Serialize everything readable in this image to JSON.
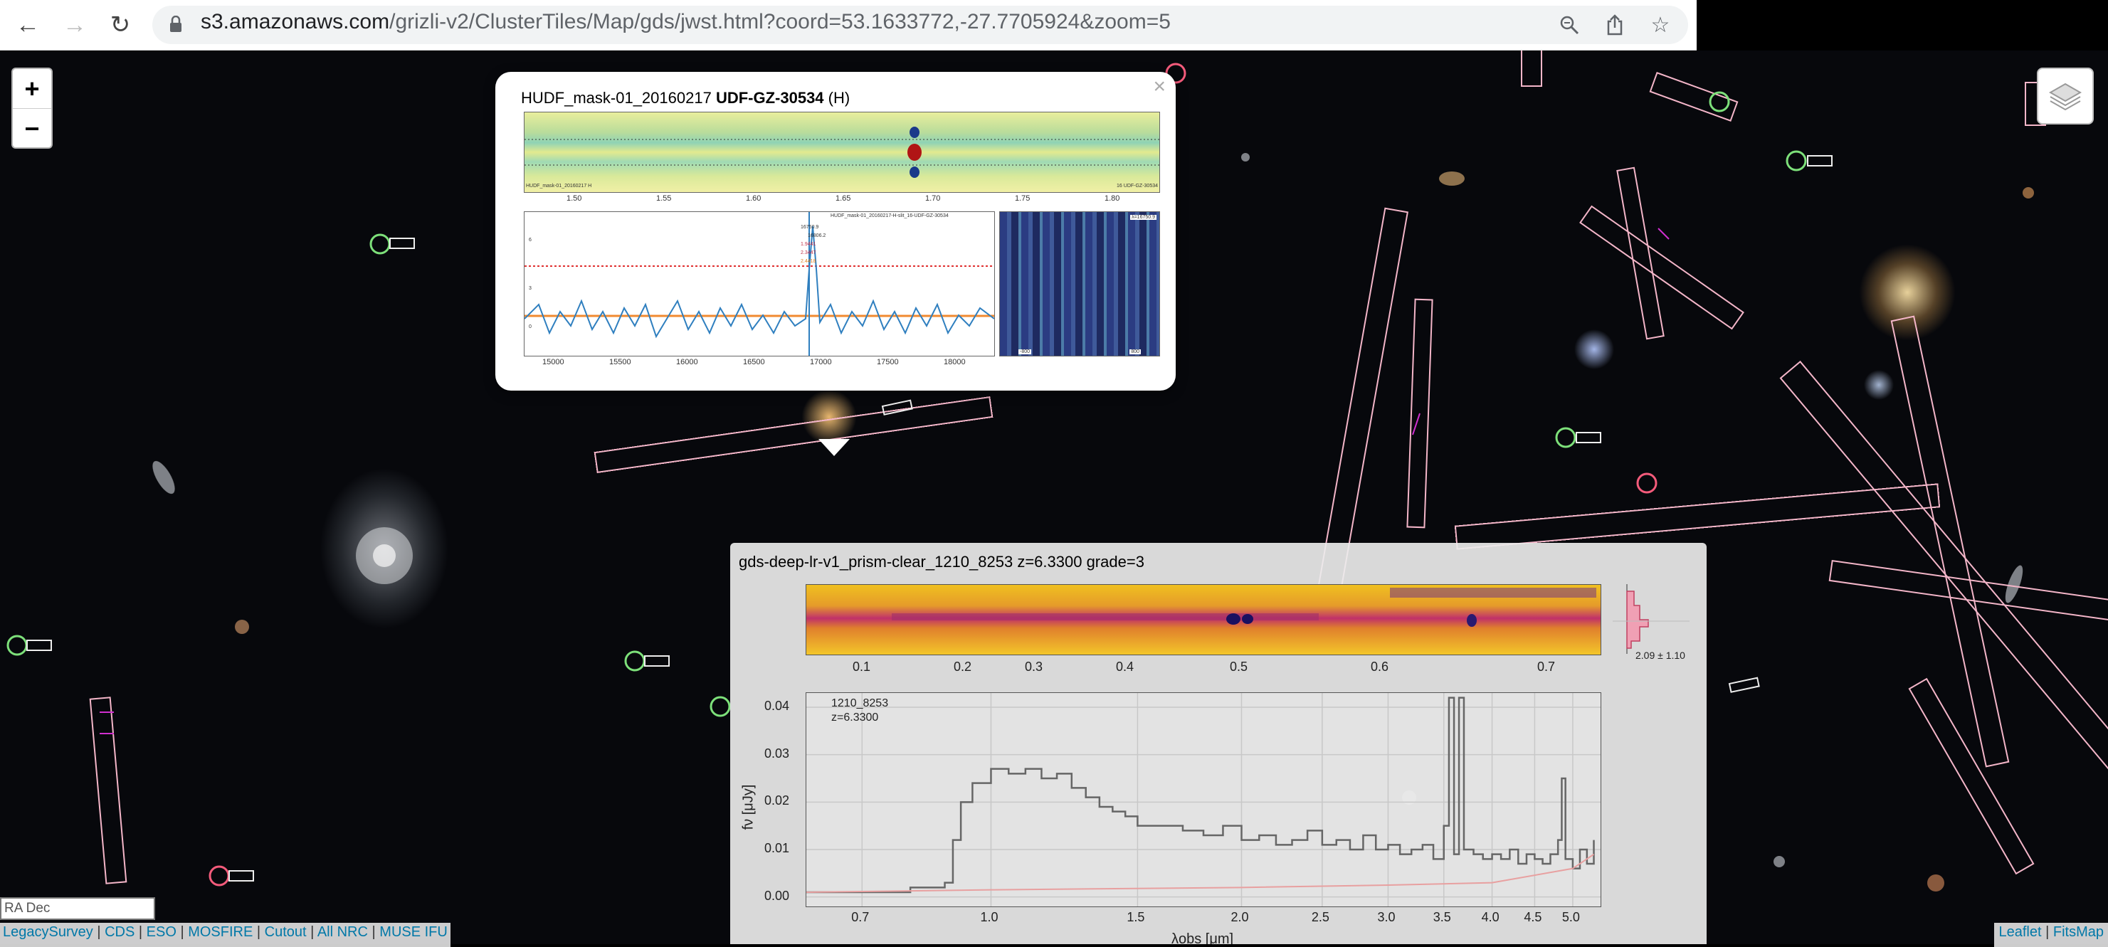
{
  "browser": {
    "url_host": "s3.amazonaws.com",
    "url_path": "/grizli-v2/ClusterTiles/Map/gds/jwst.html?coord=53.1633772,-27.7705924&zoom=5",
    "icons": [
      "back-icon",
      "forward-icon",
      "reload-icon",
      "lock-icon",
      "zoom-icon",
      "share-icon",
      "bookmark-star-icon"
    ]
  },
  "map": {
    "zoom_in_label": "+",
    "zoom_out_label": "−",
    "coord_input_value": "RA Dec",
    "links": [
      "LegacySurvey",
      "CDS",
      "ESO",
      "MOSFIRE",
      "Cutout",
      "All NRC",
      "MUSE IFU"
    ],
    "attribution": [
      "Leaflet",
      "FitsMap"
    ],
    "separator": "|"
  },
  "popup1": {
    "close_label": "×",
    "title_prefix": "HUDF_mask-01_20160217",
    "title_bold": "UDF-GZ-30534",
    "title_suffix": "(H)",
    "spec2d_xticks": [
      "1.50",
      "1.55",
      "1.60",
      "1.65",
      "1.70",
      "1.75",
      "1.80"
    ],
    "spec2d_left_label": "HUDF_mask-01_20160217  H",
    "spec2d_right_label": "16  UDF-GZ-30534",
    "spec1d_title": "HUDF_mask-01_20160217-H-slit_16-UDF-GZ-30534",
    "spec1d_xticks": [
      "15000",
      "15500",
      "16000",
      "16500",
      "17000",
      "17500",
      "18000"
    ],
    "spec1d_yticks": [
      "6",
      "3",
      "0"
    ],
    "spec1d_lines": [
      "16750.9",
      "16806.2",
      "1.9441",
      "2.3447",
      "2.4418"
    ],
    "thumb_top_label": "λ=16750.9",
    "thumb_bottom_left": "-800",
    "thumb_bottom_right": "800"
  },
  "popup2": {
    "title": "gds-deep-lr-v1_prism-clear_1210_8253 z=6.3300 grade=3",
    "spec2d_xticks": [
      "0.1",
      "0.2",
      "0.3",
      "0.4",
      "0.5",
      "0.6",
      "0.7"
    ],
    "hist_label": "2.09 ± 1.10",
    "note_id": "1210_8253",
    "note_z": "z=6.3300",
    "xlabel": "λobs [μm]",
    "ylabel": "fν [μJy]"
  },
  "chart_data": {
    "type": "line",
    "title": "",
    "xlabel": "λobs [μm]",
    "ylabel": "fν [μJy]",
    "xscale": "log",
    "xlim": [
      0.6,
      5.4
    ],
    "ylim": [
      -0.002,
      0.043
    ],
    "xticks": [
      0.7,
      1.0,
      1.5,
      2.0,
      2.5,
      3.0,
      3.5,
      4.0,
      4.5,
      5.0
    ],
    "xtick_labels": [
      "0.7",
      "1.0",
      "1.5",
      "2.0",
      "2.5",
      "3.0",
      "3.5",
      "4.0",
      "4.5",
      "5.0"
    ],
    "yticks": [
      0.0,
      0.01,
      0.02,
      0.03,
      0.04
    ],
    "ytick_labels": [
      "0.00",
      "0.01",
      "0.02",
      "0.03",
      "0.04"
    ],
    "grid": true,
    "series": [
      {
        "color": "#666666",
        "x": [
          0.6,
          0.7,
          0.8,
          0.88,
          0.9,
          0.92,
          0.95,
          1.0,
          1.05,
          1.1,
          1.15,
          1.2,
          1.25,
          1.3,
          1.35,
          1.4,
          1.45,
          1.5,
          1.6,
          1.7,
          1.8,
          1.9,
          2.0,
          2.1,
          2.2,
          2.3,
          2.4,
          2.5,
          2.6,
          2.7,
          2.8,
          2.9,
          3.0,
          3.1,
          3.2,
          3.3,
          3.4,
          3.5,
          3.55,
          3.6,
          3.65,
          3.7,
          3.8,
          3.9,
          4.0,
          4.1,
          4.2,
          4.3,
          4.4,
          4.5,
          4.6,
          4.7,
          4.8,
          4.85,
          4.9,
          5.0,
          5.1,
          5.2,
          5.3
        ],
        "values": [
          0.001,
          0.001,
          0.002,
          0.003,
          0.012,
          0.02,
          0.024,
          0.027,
          0.026,
          0.027,
          0.025,
          0.026,
          0.023,
          0.021,
          0.019,
          0.018,
          0.017,
          0.015,
          0.015,
          0.014,
          0.013,
          0.015,
          0.012,
          0.013,
          0.011,
          0.012,
          0.014,
          0.011,
          0.012,
          0.01,
          0.013,
          0.01,
          0.011,
          0.009,
          0.01,
          0.011,
          0.008,
          0.015,
          0.042,
          0.009,
          0.042,
          0.01,
          0.009,
          0.008,
          0.009,
          0.008,
          0.01,
          0.007,
          0.009,
          0.008,
          0.007,
          0.009,
          0.012,
          0.025,
          0.008,
          0.006,
          0.01,
          0.007,
          0.012
        ]
      },
      {
        "color": "#e8a0a0",
        "x": [
          0.6,
          1.0,
          2.0,
          3.0,
          4.0,
          5.0,
          5.3
        ],
        "values": [
          0.001,
          0.0015,
          0.002,
          0.0025,
          0.003,
          0.006,
          0.009
        ]
      }
    ]
  }
}
